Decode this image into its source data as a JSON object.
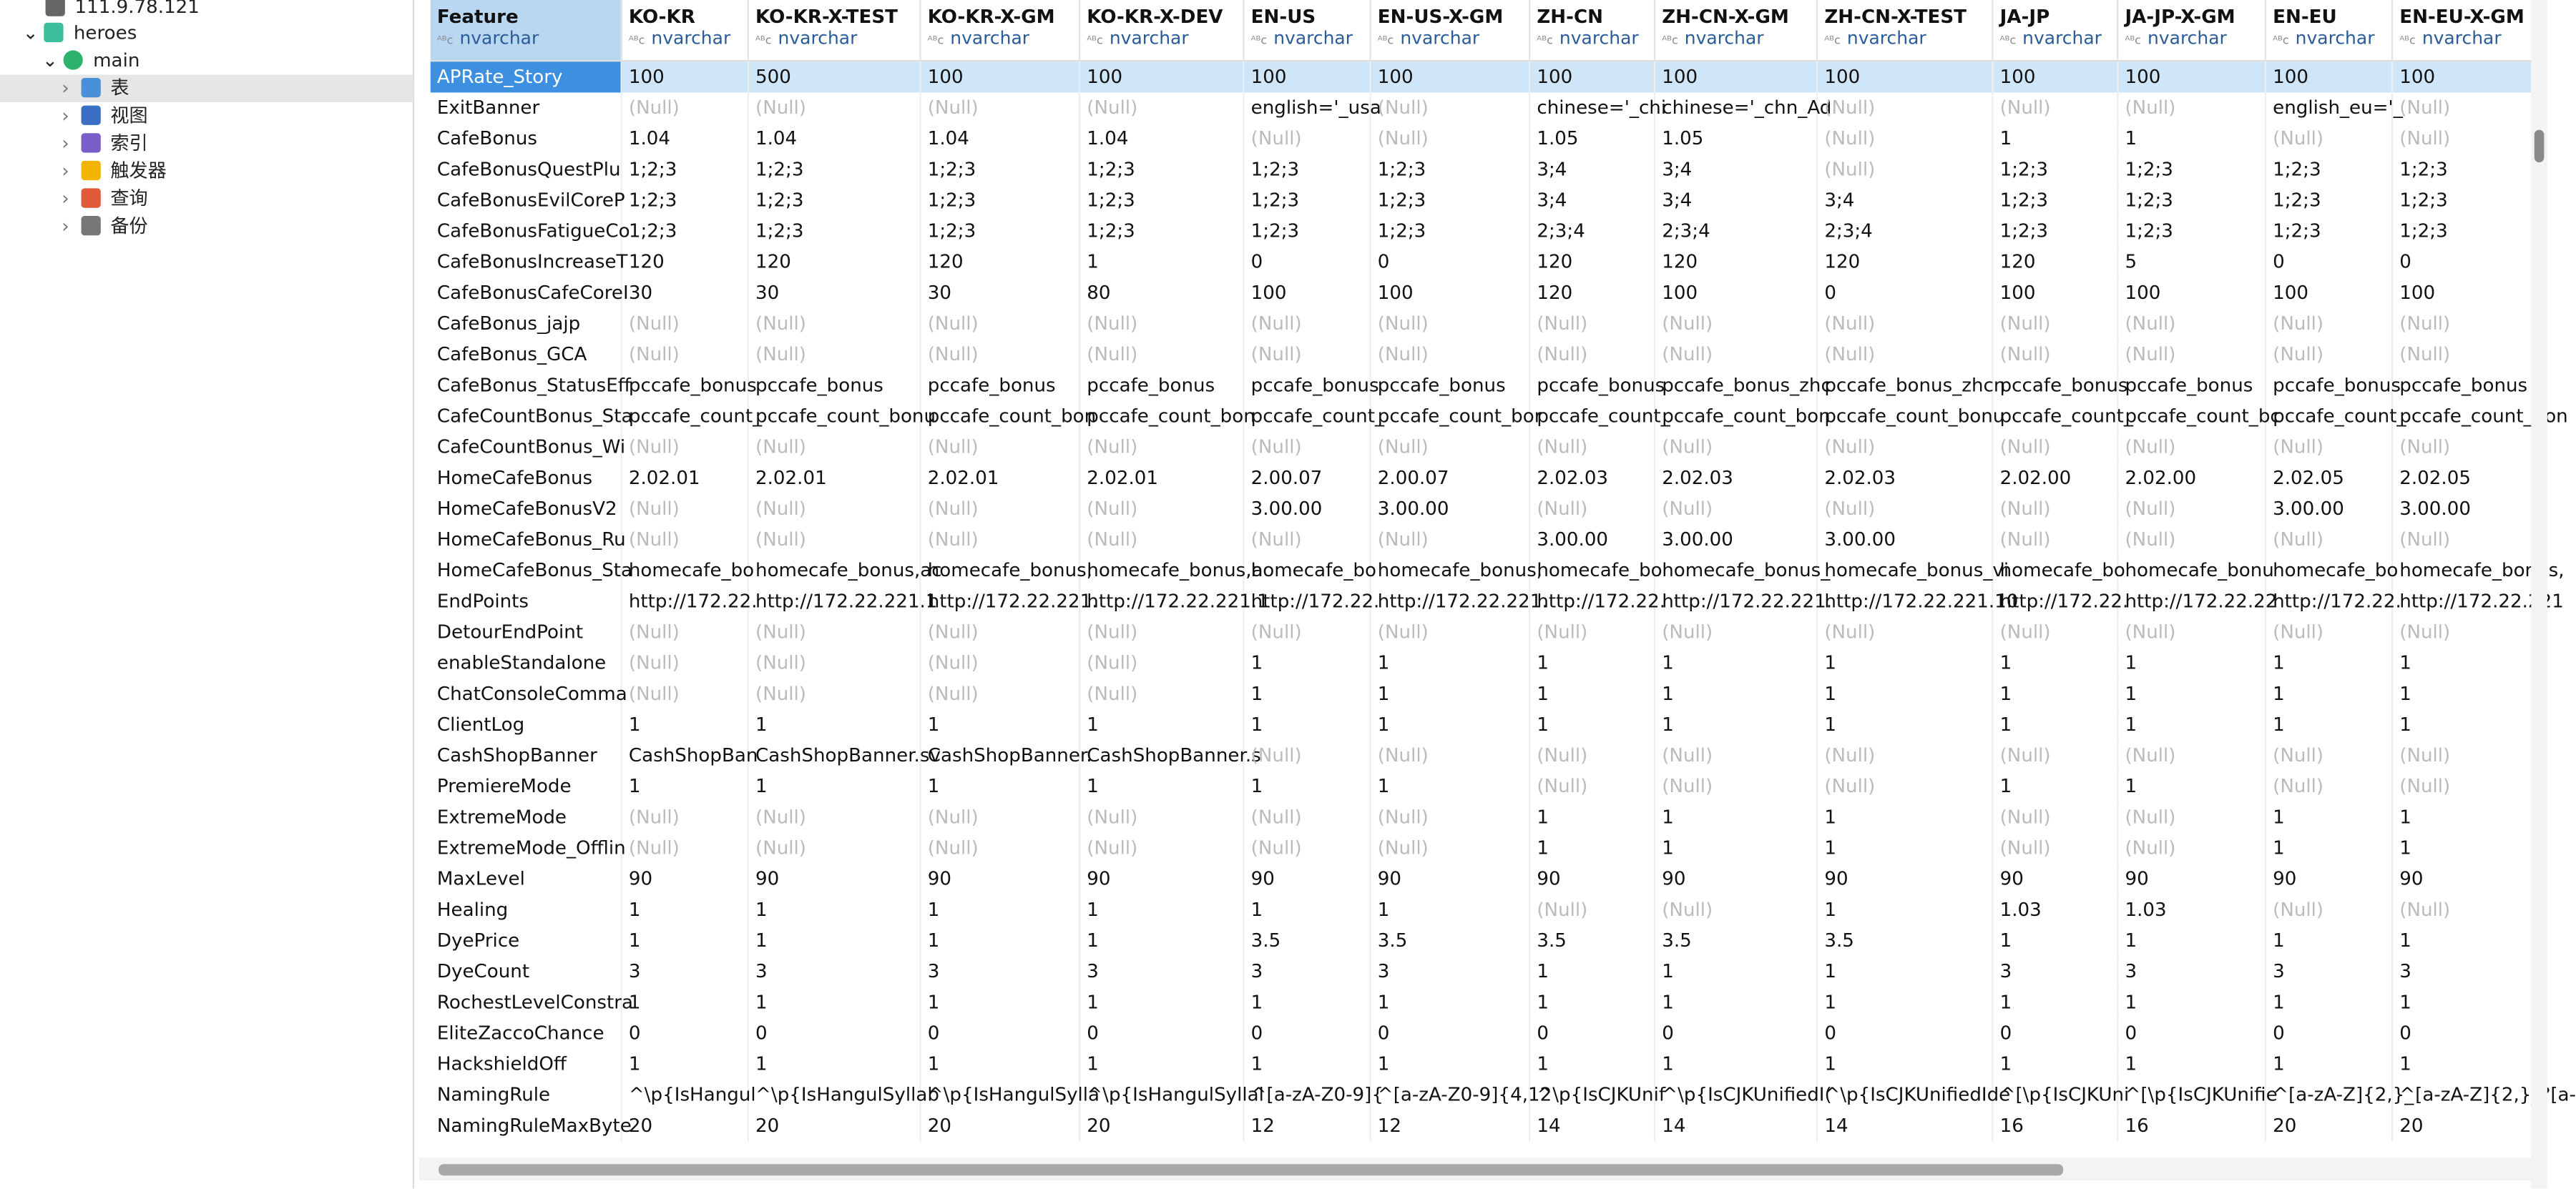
{
  "sidebar": {
    "connection": "111.9.78.121",
    "database": "heroes",
    "schema": "main",
    "items": [
      "表",
      "视图",
      "索引",
      "触发器",
      "查询",
      "备份"
    ]
  },
  "table": {
    "null_label": "(Null)",
    "columns": [
      {
        "name": "Feature",
        "type": "nvarchar"
      },
      {
        "name": "KO-KR",
        "type": "nvarchar"
      },
      {
        "name": "KO-KR-X-TEST",
        "type": "nvarchar"
      },
      {
        "name": "KO-KR-X-GM",
        "type": "nvarchar"
      },
      {
        "name": "KO-KR-X-DEV",
        "type": "nvarchar"
      },
      {
        "name": "EN-US",
        "type": "nvarchar"
      },
      {
        "name": "EN-US-X-GM",
        "type": "nvarchar"
      },
      {
        "name": "ZH-CN",
        "type": "nvarchar"
      },
      {
        "name": "ZH-CN-X-GM",
        "type": "nvarchar"
      },
      {
        "name": "ZH-CN-X-TEST",
        "type": "nvarchar"
      },
      {
        "name": "JA-JP",
        "type": "nvarchar"
      },
      {
        "name": "JA-JP-X-GM",
        "type": "nvarchar"
      },
      {
        "name": "EN-EU",
        "type": "nvarchar"
      },
      {
        "name": "EN-EU-X-GM",
        "type": "nvarchar"
      }
    ],
    "rows": [
      [
        "APRate_Story",
        "100",
        "500",
        "100",
        "100",
        "100",
        "100",
        "100",
        "100",
        "100",
        "100",
        "100",
        "100",
        "100"
      ],
      [
        "ExitBanner",
        null,
        null,
        null,
        null,
        "english='_usa",
        null,
        "chinese='_chi",
        "chinese='_chn_Ad",
        null,
        null,
        null,
        "english_eu='_",
        null
      ],
      [
        "CafeBonus",
        "1.04",
        "1.04",
        "1.04",
        "1.04",
        null,
        null,
        "1.05",
        "1.05",
        null,
        "1",
        "1",
        null,
        null
      ],
      [
        "CafeBonusQuestPlu",
        "1;2;3",
        "1;2;3",
        "1;2;3",
        "1;2;3",
        "1;2;3",
        "1;2;3",
        "3;4",
        "3;4",
        null,
        "1;2;3",
        "1;2;3",
        "1;2;3",
        "1;2;3"
      ],
      [
        "CafeBonusEvilCoreP",
        "1;2;3",
        "1;2;3",
        "1;2;3",
        "1;2;3",
        "1;2;3",
        "1;2;3",
        "3;4",
        "3;4",
        "3;4",
        "1;2;3",
        "1;2;3",
        "1;2;3",
        "1;2;3"
      ],
      [
        "CafeBonusFatigueCo",
        "1;2;3",
        "1;2;3",
        "1;2;3",
        "1;2;3",
        "1;2;3",
        "1;2;3",
        "2;3;4",
        "2;3;4",
        "2;3;4",
        "1;2;3",
        "1;2;3",
        "1;2;3",
        "1;2;3"
      ],
      [
        "CafeBonusIncreaseT",
        "120",
        "120",
        "120",
        "1",
        "0",
        "0",
        "120",
        "120",
        "120",
        "120",
        "5",
        "0",
        "0"
      ],
      [
        "CafeBonusCafeCoreI",
        "30",
        "30",
        "30",
        "80",
        "100",
        "100",
        "120",
        "100",
        "0",
        "100",
        "100",
        "100",
        "100"
      ],
      [
        "CafeBonus_jajp",
        null,
        null,
        null,
        null,
        null,
        null,
        null,
        null,
        null,
        null,
        null,
        null,
        null
      ],
      [
        "CafeBonus_GCA",
        null,
        null,
        null,
        null,
        null,
        null,
        null,
        null,
        null,
        null,
        null,
        null,
        null
      ],
      [
        "CafeBonus_StatusEff",
        "pccafe_bonus",
        "pccafe_bonus",
        "pccafe_bonus",
        "pccafe_bonus",
        "pccafe_bonus",
        "pccafe_bonus",
        "pccafe_bonus",
        "pccafe_bonus_zhc",
        "pccafe_bonus_zhcn",
        "pccafe_bonus",
        "pccafe_bonus",
        "pccafe_bonus",
        "pccafe_bonus"
      ],
      [
        "CafeCountBonus_Sta",
        "pccafe_count_",
        "pccafe_count_bonu",
        "pccafe_count_bon",
        "pccafe_count_bon",
        "pccafe_count_",
        "pccafe_count_bor",
        "pccafe_count_",
        "pccafe_count_bon",
        "pccafe_count_bonu",
        "pccafe_count_",
        "pccafe_count_bc",
        "pccafe_count_",
        "pccafe_count_bon"
      ],
      [
        "CafeCountBonus_Wi",
        null,
        null,
        null,
        null,
        null,
        null,
        null,
        null,
        null,
        null,
        null,
        null,
        null
      ],
      [
        "HomeCafeBonus",
        "2.02.01",
        "2.02.01",
        "2.02.01",
        "2.02.01",
        "2.00.07",
        "2.00.07",
        "2.02.03",
        "2.02.03",
        "2.02.03",
        "2.02.00",
        "2.02.00",
        "2.02.05",
        "2.02.05"
      ],
      [
        "HomeCafeBonusV2",
        null,
        null,
        null,
        null,
        "3.00.00",
        "3.00.00",
        null,
        null,
        null,
        null,
        null,
        "3.00.00",
        "3.00.00"
      ],
      [
        "HomeCafeBonus_Ru",
        null,
        null,
        null,
        null,
        null,
        null,
        "3.00.00",
        "3.00.00",
        "3.00.00",
        null,
        null,
        null,
        null
      ],
      [
        "HomeCafeBonus_Sta",
        "homecafe_bo",
        "homecafe_bonus,ac",
        "homecafe_bonus,",
        "homecafe_bonus,a",
        "homecafe_bo",
        "homecafe_bonus,",
        "homecafe_bo",
        "homecafe_bonus_",
        "homecafe_bonus_vi",
        "homecafe_bo",
        "homecafe_bonu",
        "homecafe_bo",
        "homecafe_bonus,"
      ],
      [
        "EndPoints",
        "http://172.22.",
        "http://172.22.221.1",
        "http://172.22.221.",
        "http://172.22.221.1",
        "http://172.22.",
        "http://172.22.221.",
        "http://172.22.",
        "http://172.22.221.",
        "http://172.22.221.10",
        "http://172.22.",
        "http://172.22.22",
        "http://172.22.",
        "http://172.22.221"
      ],
      [
        "DetourEndPoint",
        null,
        null,
        null,
        null,
        null,
        null,
        null,
        null,
        null,
        null,
        null,
        null,
        null
      ],
      [
        "enableStandalone",
        null,
        null,
        null,
        null,
        "1",
        "1",
        "1",
        "1",
        "1",
        "1",
        "1",
        "1",
        "1"
      ],
      [
        "ChatConsoleComma",
        null,
        null,
        null,
        null,
        "1",
        "1",
        "1",
        "1",
        "1",
        "1",
        "1",
        "1",
        "1"
      ],
      [
        "ClientLog",
        "1",
        "1",
        "1",
        "1",
        "1",
        "1",
        "1",
        "1",
        "1",
        "1",
        "1",
        "1",
        "1"
      ],
      [
        "CashShopBanner",
        "CashShopBan",
        "CashShopBanner.sv",
        "CashShopBanner.",
        "CashShopBanner.s",
        null,
        null,
        null,
        null,
        null,
        null,
        null,
        null,
        null
      ],
      [
        "PremiereMode",
        "1",
        "1",
        "1",
        "1",
        "1",
        "1",
        null,
        null,
        null,
        "1",
        "1",
        null,
        null
      ],
      [
        "ExtremeMode",
        null,
        null,
        null,
        null,
        null,
        null,
        "1",
        "1",
        "1",
        null,
        null,
        "1",
        "1"
      ],
      [
        "ExtremeMode_Offlin",
        null,
        null,
        null,
        null,
        null,
        null,
        "1",
        "1",
        "1",
        null,
        null,
        "1",
        "1"
      ],
      [
        "MaxLevel",
        "90",
        "90",
        "90",
        "90",
        "90",
        "90",
        "90",
        "90",
        "90",
        "90",
        "90",
        "90",
        "90"
      ],
      [
        "Healing",
        "1",
        "1",
        "1",
        "1",
        "1",
        "1",
        null,
        null,
        "1",
        "1.03",
        "1.03",
        null,
        null
      ],
      [
        "DyePrice",
        "1",
        "1",
        "1",
        "1",
        "3.5",
        "3.5",
        "3.5",
        "3.5",
        "3.5",
        "1",
        "1",
        "1",
        "1"
      ],
      [
        "DyeCount",
        "3",
        "3",
        "3",
        "3",
        "3",
        "3",
        "1",
        "1",
        "1",
        "3",
        "3",
        "3",
        "3"
      ],
      [
        "RochestLevelConstra",
        "1",
        "1",
        "1",
        "1",
        "1",
        "1",
        "1",
        "1",
        "1",
        "1",
        "1",
        "1",
        "1"
      ],
      [
        "EliteZaccoChance",
        "0",
        "0",
        "0",
        "0",
        "0",
        "0",
        "0",
        "0",
        "0",
        "0",
        "0",
        "0",
        "0"
      ],
      [
        "HackshieldOff",
        "1",
        "1",
        "1",
        "1",
        "1",
        "1",
        "1",
        "1",
        "1",
        "1",
        "1",
        "1",
        "1"
      ],
      [
        "NamingRule",
        "^\\p{IsHangul",
        "^\\p{IsHangulSyllab",
        "^\\p{IsHangulSylla",
        "^\\p{IsHangulSyllal",
        "^[a-zA-Z0-9]{",
        "^[a-zA-Z0-9]{4,12",
        "^\\p{IsCJKUnif",
        "^\\p{IsCJKUnifiedI(",
        "^\\p{IsCJKUnifiedIde",
        "^[\\p{IsCJKUni",
        "^[\\p{IsCJKUnifie",
        "^[a-zA-Z]{2,}_",
        "^[a-zA-Z]{2,}_?[a-"
      ],
      [
        "NamingRuleMaxByte",
        "20",
        "20",
        "20",
        "20",
        "12",
        "12",
        "14",
        "14",
        "14",
        "16",
        "16",
        "20",
        "20"
      ]
    ]
  }
}
